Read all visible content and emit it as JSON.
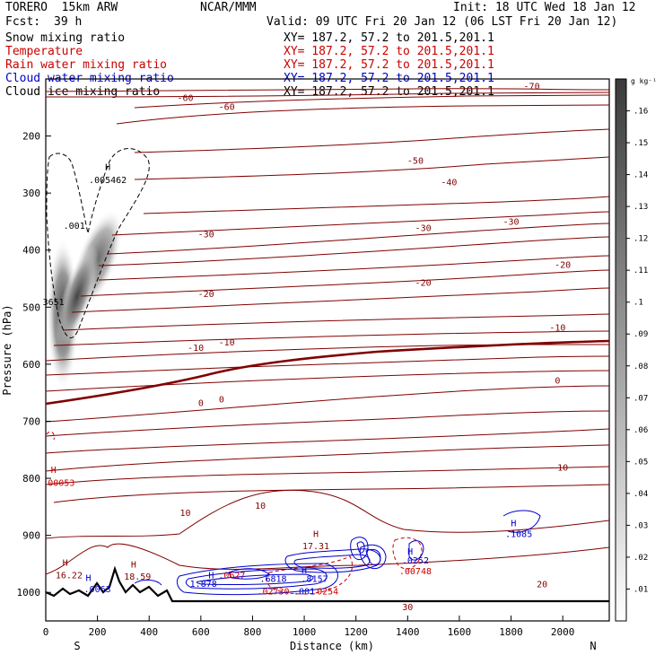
{
  "header": {
    "model": "TORERO  15km ARW",
    "org": "NCAR/MMM",
    "init": "Init: 18 UTC Wed 18 Jan 12",
    "fcst_label": "Fcst:",
    "fcst_value": "39 h",
    "valid": "Valid: 09 UTC Fri 20 Jan 12 (06 LST Fri 20 Jan 12)"
  },
  "legend": [
    {
      "label": "Snow mixing ratio",
      "xy": "",
      "color": "#000000"
    },
    {
      "label": "Temperature",
      "xy": "XY= 187.2, 57.2 to 201.5,201.1",
      "color": "#cc0000"
    },
    {
      "label": "Rain water mixing ratio",
      "xy": "XY= 187.2, 57.2 to 201.5,201.1",
      "color": "#cc0000"
    },
    {
      "label": "Cloud water mixing ratio",
      "xy": "XY= 187.2, 57.2 to 201.5,201.1",
      "color": "#0000cc"
    },
    {
      "label": "Cloud ice mixing ratio",
      "xy": "XY= 187.2, 57.2 to 201.5,201.1",
      "color": "#000000"
    }
  ],
  "legend_top_xy": "XY= 187.2, 57.2 to 201.5,201.1",
  "colors": {
    "temperature": "#800000",
    "rain": "#cc0000",
    "cloud_water": "#0000cc",
    "snow_shading": "#555555"
  },
  "chart_data": {
    "type": "heatmap",
    "xlabel": "Distance (km)",
    "ylabel": "Pressure (hPa)",
    "xlim": [
      0,
      2180
    ],
    "ylim": [
      1050,
      100
    ],
    "x_ticks": [
      0,
      200,
      400,
      600,
      800,
      1000,
      1200,
      1400,
      1600,
      1800,
      2000
    ],
    "y_ticks": [
      200,
      300,
      400,
      500,
      600,
      700,
      800,
      900,
      1000
    ],
    "x_end_labels": {
      "left": "S",
      "right": "N"
    },
    "colorbar": {
      "unit": "g kg⁻¹",
      "ticks": [
        ".01",
        ".02",
        ".03",
        ".04",
        ".05",
        ".06",
        ".07",
        ".08",
        ".09",
        ".1",
        ".11",
        ".12",
        ".13",
        ".14",
        ".15",
        ".16"
      ]
    },
    "temperature_contour_labels": [
      {
        "text": "-70",
        "x": 1880,
        "p": 112
      },
      {
        "text": "-60",
        "x": 540,
        "p": 132
      },
      {
        "text": "-60",
        "x": 700,
        "p": 148
      },
      {
        "text": "-50",
        "x": 1430,
        "p": 242
      },
      {
        "text": "-40",
        "x": 1560,
        "p": 280
      },
      {
        "text": "-30",
        "x": 620,
        "p": 371
      },
      {
        "text": "-30",
        "x": 1460,
        "p": 360
      },
      {
        "text": "-30",
        "x": 1800,
        "p": 349
      },
      {
        "text": "-20",
        "x": 620,
        "p": 476
      },
      {
        "text": "-20",
        "x": 1460,
        "p": 456
      },
      {
        "text": "-20",
        "x": 2000,
        "p": 425
      },
      {
        "text": "-10",
        "x": 580,
        "p": 570
      },
      {
        "text": "-10",
        "x": 700,
        "p": 561
      },
      {
        "text": "-10",
        "x": 1980,
        "p": 535
      },
      {
        "text": "0",
        "x": 600,
        "p": 667
      },
      {
        "text": "0",
        "x": 680,
        "p": 661
      },
      {
        "text": "0",
        "x": 1980,
        "p": 628
      },
      {
        "text": "10",
        "x": 540,
        "p": 860
      },
      {
        "text": "10",
        "x": 830,
        "p": 847
      },
      {
        "text": "10",
        "x": 2000,
        "p": 780
      },
      {
        "text": "20",
        "x": 1920,
        "p": 985
      },
      {
        "text": "30",
        "x": 1400,
        "p": 1025
      }
    ],
    "extrema_labels": [
      {
        "text": "H",
        "x": 240,
        "p": 253,
        "color": "#000000"
      },
      {
        "text": ".005462",
        "x": 240,
        "p": 276,
        "color": "#000000"
      },
      {
        "text": ".001",
        "x": 110,
        "p": 356,
        "color": "#000000"
      },
      {
        "text": "3651",
        "x": 30,
        "p": 490,
        "color": "#000000"
      },
      {
        "text": "H",
        "x": 30,
        "p": 784,
        "color": "#cc0000"
      },
      {
        "text": "00053",
        "x": 60,
        "p": 807,
        "color": "#cc0000"
      },
      {
        "text": "H",
        "x": 75,
        "p": 947,
        "color": "#800000"
      },
      {
        "text": "16.22",
        "x": 90,
        "p": 969,
        "color": "#800000"
      },
      {
        "text": "H",
        "x": 340,
        "p": 950,
        "color": "#800000"
      },
      {
        "text": "18.59",
        "x": 355,
        "p": 971,
        "color": "#800000"
      },
      {
        "text": "H",
        "x": 1045,
        "p": 897,
        "color": "#800000"
      },
      {
        "text": "17.31",
        "x": 1045,
        "p": 918,
        "color": "#800000"
      },
      {
        "text": "H",
        "x": 165,
        "p": 974,
        "color": "#0000cc"
      },
      {
        "text": ".0063",
        "x": 200,
        "p": 993,
        "color": "#0000cc"
      },
      {
        "text": "H",
        "x": 1810,
        "p": 878,
        "color": "#0000cc"
      },
      {
        "text": ".1085",
        "x": 1830,
        "p": 897,
        "color": "#0000cc"
      },
      {
        "text": "H",
        "x": 640,
        "p": 969,
        "color": "#0000cc"
      },
      {
        "text": "1.878",
        "x": 610,
        "p": 984,
        "color": "#0000cc"
      },
      {
        "text": ".0627",
        "x": 720,
        "p": 969,
        "color": "#cc0000"
      },
      {
        "text": ".6818",
        "x": 880,
        "p": 975,
        "color": "#0000cc"
      },
      {
        "text": ".02730",
        "x": 880,
        "p": 997,
        "color": "#cc0000"
      },
      {
        "text": "H",
        "x": 1000,
        "p": 960,
        "color": "#0000cc"
      },
      {
        "text": ".8157",
        "x": 1040,
        "p": 975,
        "color": "#0000cc"
      },
      {
        "text": ".001",
        "x": 1000,
        "p": 997,
        "color": "#0000cc"
      },
      {
        "text": ".0254",
        "x": 1080,
        "p": 997,
        "color": "#cc0000"
      },
      {
        "text": "H",
        "x": 1410,
        "p": 927,
        "color": "#0000cc"
      },
      {
        "text": ".0252",
        "x": 1430,
        "p": 943,
        "color": "#0000cc"
      },
      {
        "text": ".00748",
        "x": 1430,
        "p": 962,
        "color": "#cc0000"
      }
    ]
  }
}
